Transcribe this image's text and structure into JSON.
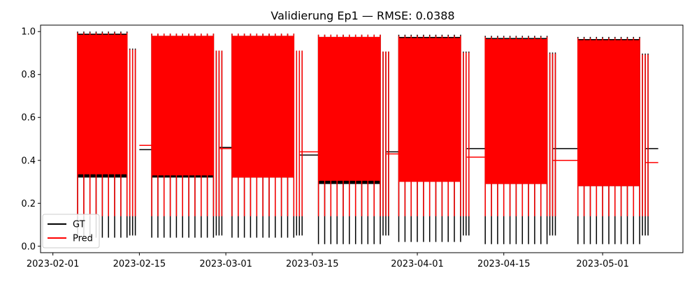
{
  "chart_data": {
    "type": "line",
    "title": "Validierung Ep1 — RMSE: 0.0388",
    "xlabel": "",
    "ylabel": "",
    "x_range": [
      "2023-01-30",
      "2023-05-14"
    ],
    "ylim": [
      -0.03,
      1.03
    ],
    "x_ticks": [
      "2023-02-01",
      "2023-02-15",
      "2023-03-01",
      "2023-03-15",
      "2023-04-01",
      "2023-04-15",
      "2023-05-01"
    ],
    "y_ticks": [
      0.0,
      0.2,
      0.4,
      0.6,
      0.8,
      1.0
    ],
    "grid": false,
    "legend_position": "lower-left",
    "series": [
      {
        "name": "GT",
        "color": "#000000",
        "blocks": [
          {
            "start": "2023-02-05",
            "end": "2023-02-13",
            "high": 0.99,
            "low": 0.32
          },
          {
            "start": "2023-02-17",
            "end": "2023-02-27",
            "high": 0.98,
            "low": 0.32
          },
          {
            "start": "2023-03-02",
            "end": "2023-03-12",
            "high": 0.98,
            "low": 0.32
          },
          {
            "start": "2023-03-16",
            "end": "2023-03-26",
            "high": 0.975,
            "low": 0.29
          },
          {
            "start": "2023-03-29",
            "end": "2023-04-08",
            "high": 0.975,
            "low": 0.3
          },
          {
            "start": "2023-04-12",
            "end": "2023-04-22",
            "high": 0.97,
            "low": 0.29
          },
          {
            "start": "2023-04-27",
            "end": "2023-05-07",
            "high": 0.965,
            "low": 0.28
          }
        ],
        "plateaus": [
          {
            "start": "2023-02-15",
            "end": "2023-02-17",
            "value": 0.45
          },
          {
            "start": "2023-02-28",
            "end": "2023-03-02",
            "value": 0.46
          },
          {
            "start": "2023-03-13",
            "end": "2023-03-16",
            "value": 0.425
          },
          {
            "start": "2023-03-27",
            "end": "2023-03-29",
            "value": 0.44
          },
          {
            "start": "2023-04-09",
            "end": "2023-04-12",
            "value": 0.455
          },
          {
            "start": "2023-04-23",
            "end": "2023-04-27",
            "value": 0.455
          },
          {
            "start": "2023-05-08",
            "end": "2023-05-10",
            "value": 0.455
          }
        ]
      },
      {
        "name": "Pred",
        "color": "#ff0000",
        "blocks": [
          {
            "start": "2023-02-05",
            "end": "2023-02-13",
            "high": 0.985,
            "low": 0.335
          },
          {
            "start": "2023-02-17",
            "end": "2023-02-27",
            "high": 0.98,
            "low": 0.33
          },
          {
            "start": "2023-03-02",
            "end": "2023-03-12",
            "high": 0.98,
            "low": 0.32
          },
          {
            "start": "2023-03-16",
            "end": "2023-03-26",
            "high": 0.975,
            "low": 0.305
          },
          {
            "start": "2023-03-29",
            "end": "2023-04-08",
            "high": 0.97,
            "low": 0.3
          },
          {
            "start": "2023-04-12",
            "end": "2023-04-22",
            "high": 0.965,
            "low": 0.29
          },
          {
            "start": "2023-04-27",
            "end": "2023-05-07",
            "high": 0.96,
            "low": 0.28
          }
        ],
        "plateaus": [
          {
            "start": "2023-02-15",
            "end": "2023-02-17",
            "value": 0.47
          },
          {
            "start": "2023-02-28",
            "end": "2023-03-02",
            "value": 0.455
          },
          {
            "start": "2023-03-13",
            "end": "2023-03-16",
            "value": 0.44
          },
          {
            "start": "2023-03-27",
            "end": "2023-03-29",
            "value": 0.43
          },
          {
            "start": "2023-04-09",
            "end": "2023-04-12",
            "value": 0.415
          },
          {
            "start": "2023-04-23",
            "end": "2023-04-27",
            "value": 0.4
          },
          {
            "start": "2023-05-08",
            "end": "2023-05-10",
            "value": 0.39
          }
        ]
      }
    ]
  }
}
